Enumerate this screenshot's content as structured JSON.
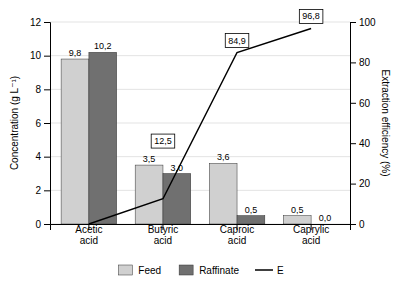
{
  "chart_data": {
    "type": "bar",
    "categories": [
      "Acetic\nacid",
      "Butyric\nacid",
      "Caproic\nacid",
      "Caprylic\nacid"
    ],
    "series": [
      {
        "name": "Feed",
        "color": "#d0d0d0",
        "values": [
          9.8,
          3.5,
          3.6,
          0.5
        ],
        "value_labels": [
          "9,8",
          "3,5",
          "3,6",
          "0,5"
        ]
      },
      {
        "name": "Raffinate",
        "color": "#707070",
        "values": [
          10.2,
          3.0,
          0.5,
          0.0
        ],
        "value_labels": [
          "10,2",
          "3,0",
          "0,5",
          "0,0"
        ]
      },
      {
        "name": "E",
        "type": "line",
        "axis": "y2",
        "color": "#000000",
        "values": [
          0.0,
          12.5,
          84.9,
          96.8
        ],
        "value_labels": [
          null,
          "12,5",
          "84,9",
          "96,8"
        ]
      }
    ],
    "ylabel": "Concentration (g L⁻¹)",
    "y2label": "Extraction efficiency (%)",
    "ylim": [
      0,
      12
    ],
    "yticks": [
      0,
      2,
      4,
      6,
      8,
      10,
      12
    ],
    "y2lim": [
      0,
      100
    ],
    "y2ticks": [
      0,
      20,
      40,
      60,
      80,
      100
    ],
    "grid": true,
    "data_labels": true,
    "legend": "bottom"
  }
}
